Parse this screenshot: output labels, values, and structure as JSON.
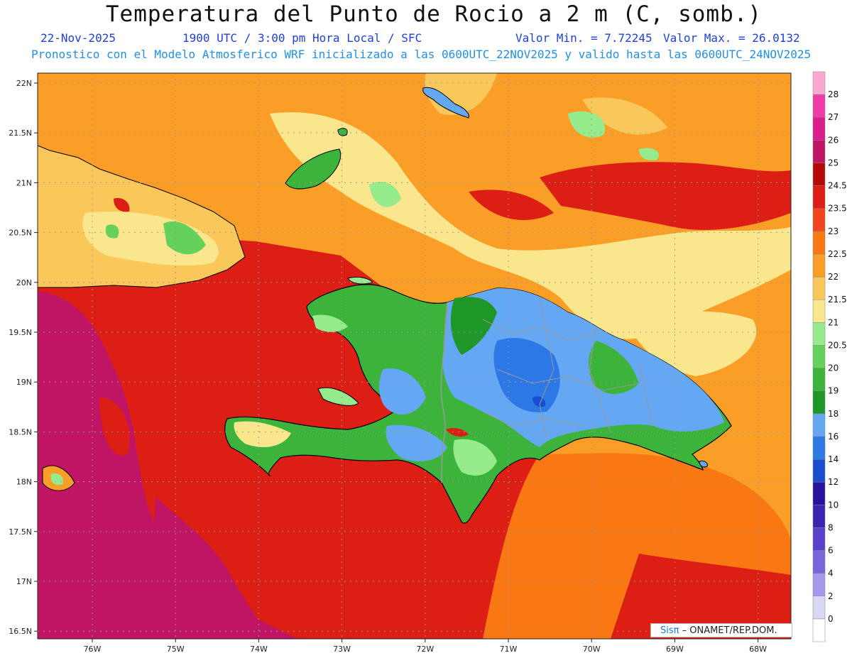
{
  "header": {
    "title": "Temperatura del Punto de Rocio a 2 m (C, somb.)",
    "date": "22-Nov-2025",
    "time": "1900 UTC / 3:00 pm Hora Local / SFC",
    "min_value": "Valor Min. = 7.72245",
    "max_value": "Valor Max. = 26.0132",
    "model_info": "Pronostico con el Modelo Atmosferico WRF inicializado a las 0600UTC_22NOV2025 y valido hasta las  0600UTC_24NOV2025"
  },
  "axes": {
    "lat_labels": [
      "22N",
      "21.5N",
      "21N",
      "20.5N",
      "20N",
      "19.5N",
      "19N",
      "18.5N",
      "18N",
      "17.5N",
      "17N",
      "16.5N"
    ],
    "lon_labels": [
      "76W",
      "75W",
      "74W",
      "73W",
      "72W",
      "71W",
      "70W",
      "69W",
      "68W"
    ]
  },
  "colorbar": {
    "levels": [
      "0",
      "2",
      "4",
      "6",
      "8",
      "10",
      "12",
      "14",
      "16",
      "18",
      "19",
      "20",
      "20.5",
      "21",
      "21.5",
      "22",
      "22.5",
      "23",
      "23.5",
      "24.5",
      "25",
      "26",
      "27",
      "28"
    ],
    "colors": [
      "#ffffff",
      "#d8d8f4",
      "#a898ec",
      "#7a66dc",
      "#5a40c8",
      "#3c24b0",
      "#28149c",
      "#1a4cd0",
      "#2c78e6",
      "#64a8f4",
      "#1e9628",
      "#3cb43c",
      "#64d25a",
      "#96ec8c",
      "#fae68c",
      "#fac85a",
      "#fa9e28",
      "#fa7814",
      "#f0461e",
      "#dc1e14",
      "#b40a0a",
      "#c01464",
      "#dc1e8c",
      "#f03ca8",
      "#f8a8d2"
    ]
  },
  "credit": {
    "brand": "Sisπ",
    "org": " – ONAMET/REP.DOM."
  }
}
